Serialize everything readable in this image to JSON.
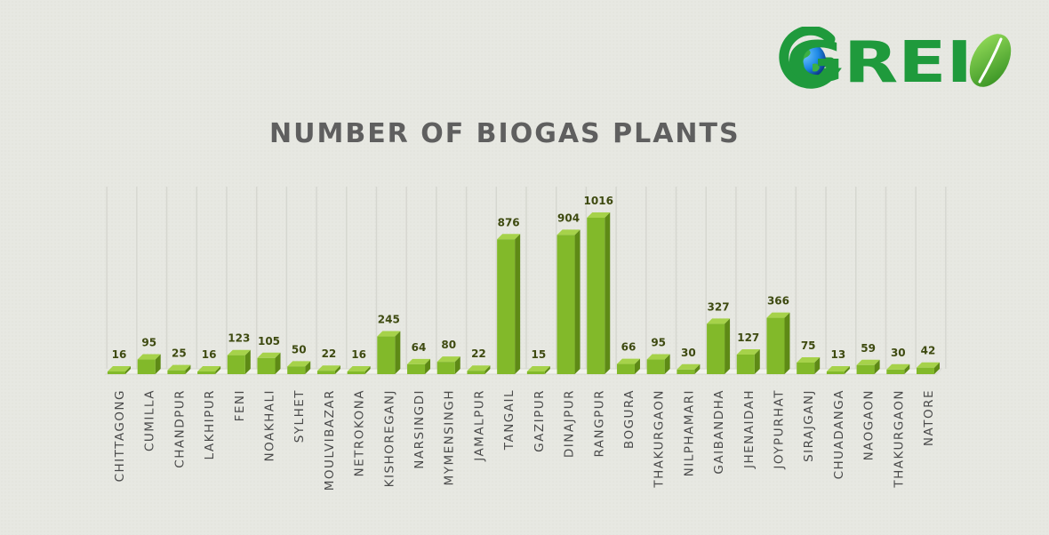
{
  "logo": {
    "text": "GREI",
    "colors": {
      "text": "#1f9a3c",
      "globe": "#1565c0",
      "leaf": "#4caf2a"
    },
    "icons": [
      "globe-icon",
      "leaf-icon"
    ]
  },
  "chart_data": {
    "type": "bar",
    "title": "NUMBER OF BIOGAS PLANTS",
    "xlabel": "",
    "ylabel": "",
    "ylim": [
      0,
      1100
    ],
    "grid": "vertical",
    "legend": "none",
    "bar_color": "#82b92a",
    "categories": [
      "CHITTAGONG",
      "CUMILLA",
      "CHANDPUR",
      "LAKHIPUR",
      "FENI",
      "NOAKHALI",
      "SYLHET",
      "MOULVIBAZAR",
      "NETROKONA",
      "KISHOREGANJ",
      "NARSINGDI",
      "MYMENSINGH",
      "JAMALPUR",
      "TANGAIL",
      "GAZIPUR",
      "DINAJPUR",
      "RANGPUR",
      "BOGURA",
      "THAKURGAON",
      "NILPHAMARI",
      "GAIBANDHA",
      "JHENAIDAH",
      "JOYPURHAT",
      "SIRAJGANJ",
      "CHUADANGA",
      "NAOGAON",
      "THAKURGAON",
      "NATORE"
    ],
    "values": [
      16,
      95,
      25,
      16,
      123,
      105,
      50,
      22,
      16,
      245,
      64,
      80,
      22,
      876,
      15,
      904,
      1016,
      66,
      95,
      30,
      327,
      127,
      366,
      75,
      13,
      59,
      30,
      42
    ]
  }
}
